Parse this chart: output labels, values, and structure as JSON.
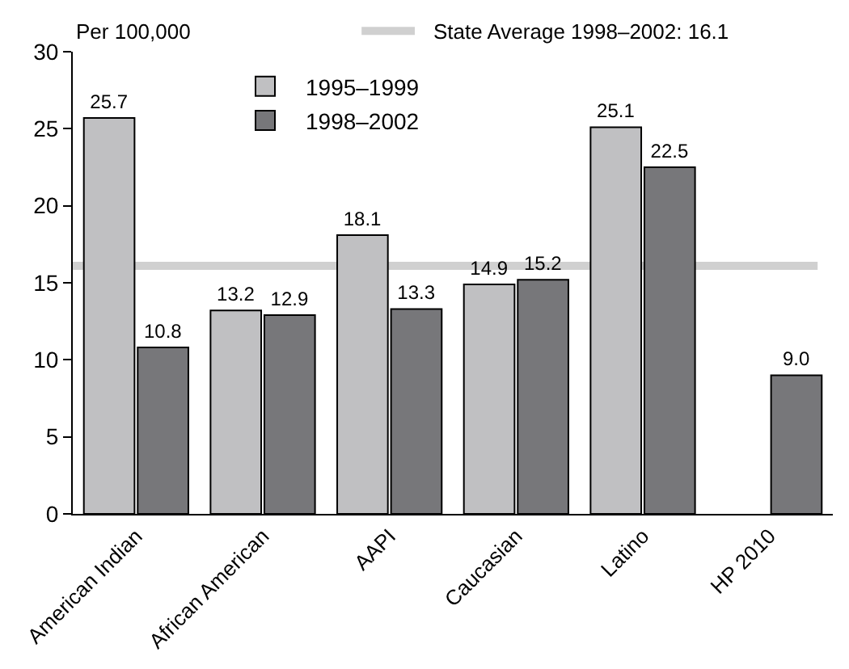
{
  "chart_data": {
    "type": "bar",
    "ylabel": "Per 100,000",
    "categories": [
      "American Indian",
      "African American",
      "AAPI",
      "Caucasian",
      "Latino",
      "HP 2010"
    ],
    "series": [
      {
        "name": "1995–1999",
        "color": "#c0c0c2",
        "values": [
          25.7,
          13.2,
          18.1,
          14.9,
          25.1,
          null
        ],
        "value_labels": [
          "25.7",
          "13.2",
          "18.1",
          "14.9",
          "25.1",
          null
        ]
      },
      {
        "name": "1998–2002",
        "color": "#77777a",
        "values": [
          10.8,
          12.9,
          13.3,
          15.2,
          22.5,
          9.0
        ],
        "value_labels": [
          "10.8",
          "12.9",
          "13.3",
          "15.2",
          "22.5",
          "9.0"
        ]
      }
    ],
    "ylim": [
      0,
      30
    ],
    "yticks": [
      0,
      5,
      10,
      15,
      20,
      25,
      30
    ],
    "ref_lines": [
      {
        "axis": "y",
        "value": 16.1,
        "label": "State Average 1998–2002: 16.1",
        "color": "#d0d0d0"
      }
    ],
    "grid": false,
    "legend": "top"
  }
}
